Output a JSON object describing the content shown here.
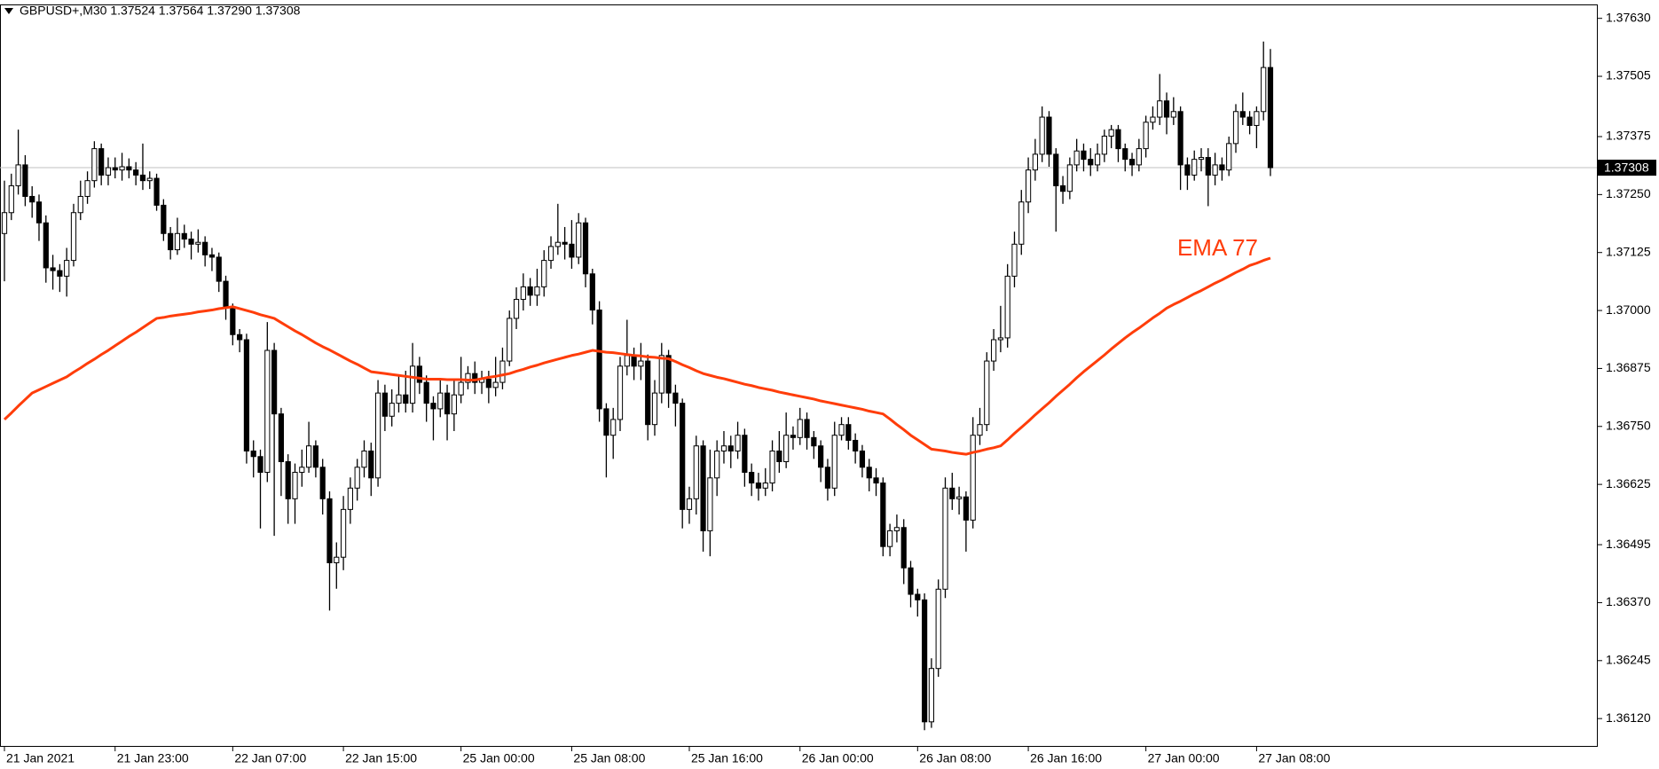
{
  "chart_data": {
    "type": "candlestick",
    "title": "GBPUSD+,M30 1.37524 1.37564 1.37290 1.37308",
    "categories": [
      "21 Jan 2021",
      null,
      null,
      null,
      null,
      null,
      null,
      null,
      null,
      null,
      null,
      null,
      null,
      null,
      null,
      null,
      "21 Jan 23:00",
      null,
      null,
      null,
      null,
      null,
      null,
      null,
      null,
      null,
      null,
      null,
      null,
      null,
      null,
      null,
      null,
      "22 Jan 07:00",
      null,
      null,
      null,
      null,
      null,
      null,
      null,
      null,
      null,
      null,
      null,
      null,
      null,
      null,
      null,
      "22 Jan 15:00",
      null,
      null,
      null,
      null,
      null,
      null,
      null,
      null,
      null,
      null,
      null,
      null,
      null,
      null,
      null,
      null,
      "25 Jan 00:00",
      null,
      null,
      null,
      null,
      null,
      null,
      null,
      null,
      null,
      null,
      null,
      null,
      null,
      null,
      null,
      "25 Jan 08:00",
      null,
      null,
      null,
      null,
      null,
      null,
      null,
      null,
      null,
      null,
      null,
      null,
      null,
      null,
      null,
      null,
      "25 Jan 16:00",
      null,
      null,
      null,
      null,
      null,
      null,
      null,
      null,
      null,
      null,
      null,
      null,
      null,
      null,
      null,
      "26 Jan 00:00",
      null,
      null,
      null,
      null,
      null,
      null,
      null,
      null,
      null,
      null,
      null,
      null,
      null,
      null,
      null,
      null,
      "26 Jan 08:00",
      null,
      null,
      null,
      null,
      null,
      null,
      null,
      null,
      null,
      null,
      null,
      null,
      null,
      null,
      null,
      "26 Jan 16:00",
      null,
      null,
      null,
      null,
      null,
      null,
      null,
      null,
      null,
      null,
      null,
      null,
      null,
      null,
      null,
      null,
      "27 Jan 00:00",
      null,
      null,
      null,
      null,
      null,
      null,
      null,
      null,
      null,
      null,
      null,
      null,
      null,
      null,
      null,
      "27 Jan 08:00",
      null,
      null
    ],
    "open": [
      1.37166,
      1.37211,
      1.37269,
      1.37314,
      1.37246,
      1.37234,
      1.37189,
      1.37092,
      1.37086,
      1.37074,
      1.37108,
      1.37211,
      1.37246,
      1.3728,
      1.37349,
      1.37292,
      1.37308,
      1.37303,
      1.3731,
      1.37303,
      1.37292,
      1.3728,
      1.37285,
      1.37227,
      1.37166,
      1.37131,
      1.37166,
      1.37154,
      1.37143,
      1.37147,
      1.3712,
      1.37115,
      1.37063,
      1.37005,
      1.36948,
      1.36937,
      1.36697,
      1.36685,
      1.36651,
      1.36914,
      1.36777,
      1.36674,
      1.36594,
      1.36651,
      1.36662,
      1.36708,
      1.36662,
      1.36594,
      1.36456,
      1.36468,
      1.36571,
      1.36617,
      1.36662,
      1.36697,
      1.36639,
      1.36822,
      1.36772,
      1.368,
      1.36818,
      1.368,
      1.3688,
      1.36845,
      1.368,
      1.36788,
      1.36822,
      1.36777,
      1.36818,
      1.36845,
      1.36864,
      1.36845,
      1.36852,
      1.36834,
      1.36845,
      1.36891,
      1.36983,
      1.37024,
      1.37051,
      1.37033,
      1.37051,
      1.37108,
      1.37138,
      1.37147,
      1.37143,
      1.37115,
      1.37189,
      1.37079,
      1.37001,
      1.36788,
      1.36731,
      1.36765,
      1.3688,
      1.36903,
      1.3688,
      1.36891,
      1.36754,
      1.36822,
      1.36903,
      1.36822,
      1.368,
      1.36571,
      1.36594,
      1.36708,
      1.36525,
      1.36639,
      1.36697,
      1.36708,
      1.36697,
      1.36731,
      1.36651,
      1.36628,
      1.36617,
      1.36628,
      1.36697,
      1.36674,
      1.36731,
      1.36726,
      1.36765,
      1.36726,
      1.36708,
      1.36662,
      1.36617,
      1.36731,
      1.36754,
      1.3672,
      1.36697,
      1.36662,
      1.36639,
      1.36628,
      1.36491,
      1.36525,
      1.36532,
      1.36445,
      1.36388,
      1.36376,
      1.36113,
      1.36228,
      1.36399,
      1.36617,
      1.36594,
      1.36598,
      1.36548,
      1.36731,
      1.36754,
      1.36891,
      1.36937,
      1.36941,
      1.37074,
      1.37143,
      1.37234,
      1.37303,
      1.37337,
      1.37417,
      1.37337,
      1.37269,
      1.37257,
      1.37314,
      1.37344,
      1.37326,
      1.37314,
      1.37337,
      1.37376,
      1.3739,
      1.37349,
      1.37326,
      1.37314,
      1.37349,
      1.37406,
      1.37417,
      1.37452,
      1.37417,
      1.37429,
      1.37314,
      1.37292,
      1.37326,
      1.3733,
      1.37292,
      1.37314,
      1.37303,
      1.3736,
      1.37429,
      1.37417,
      1.37399,
      1.37429,
      1.37524
    ],
    "high": [
      1.3728,
      1.37295,
      1.3739,
      1.37335,
      1.37268,
      1.3725,
      1.37205,
      1.3712,
      1.371,
      1.37135,
      1.3723,
      1.3728,
      1.373,
      1.37365,
      1.3736,
      1.3733,
      1.3733,
      1.3734,
      1.37328,
      1.3732,
      1.3736,
      1.373,
      1.37295,
      1.3724,
      1.3718,
      1.372,
      1.37185,
      1.3717,
      1.37175,
      1.3716,
      1.37135,
      1.37125,
      1.37075,
      1.37015,
      1.3696,
      1.3695,
      1.3672,
      1.367,
      1.36975,
      1.3693,
      1.3679,
      1.3669,
      1.3667,
      1.367,
      1.3676,
      1.3672,
      1.3668,
      1.3661,
      1.365,
      1.366,
      1.3664,
      1.3668,
      1.3672,
      1.36715,
      1.3685,
      1.3684,
      1.3683,
      1.3686,
      1.3687,
      1.3693,
      1.369,
      1.3686,
      1.36815,
      1.3685,
      1.3684,
      1.3685,
      1.369,
      1.3688,
      1.3689,
      1.3687,
      1.3687,
      1.369,
      1.3692,
      1.37,
      1.3705,
      1.3708,
      1.3707,
      1.3709,
      1.3713,
      1.3716,
      1.3723,
      1.3718,
      1.37195,
      1.3721,
      1.372,
      1.3709,
      1.3702,
      1.368,
      1.3679,
      1.369,
      1.3698,
      1.3692,
      1.3693,
      1.36905,
      1.3685,
      1.3693,
      1.36915,
      1.3684,
      1.3681,
      1.3662,
      1.3673,
      1.3672,
      1.367,
      1.3672,
      1.3674,
      1.3673,
      1.3676,
      1.36745,
      1.3667,
      1.3665,
      1.3666,
      1.3672,
      1.3674,
      1.3678,
      1.3675,
      1.3679,
      1.3678,
      1.3674,
      1.3672,
      1.3668,
      1.3676,
      1.3677,
      1.3677,
      1.36735,
      1.3671,
      1.3668,
      1.3666,
      1.3664,
      1.3654,
      1.3656,
      1.3655,
      1.3646,
      1.364,
      1.3639,
      1.3625,
      1.3642,
      1.3664,
      1.3665,
      1.3662,
      1.3661,
      1.3677,
      1.3679,
      1.3691,
      1.3696,
      1.3701,
      1.371,
      1.3717,
      1.3726,
      1.3733,
      1.3737,
      1.3744,
      1.3743,
      1.3735,
      1.3729,
      1.3733,
      1.3737,
      1.3736,
      1.3735,
      1.3736,
      1.3739,
      1.374,
      1.374,
      1.3736,
      1.3734,
      1.3737,
      1.3742,
      1.3744,
      1.3751,
      1.3747,
      1.3746,
      1.3744,
      1.3733,
      1.37345,
      1.3735,
      1.3735,
      1.3734,
      1.3733,
      1.37375,
      1.37445,
      1.3747,
      1.3743,
      1.3744,
      1.3758,
      1.37564
    ],
    "low": [
      1.37063,
      1.37195,
      1.3725,
      1.37225,
      1.372,
      1.3715,
      1.3706,
      1.37045,
      1.3704,
      1.3703,
      1.37095,
      1.37195,
      1.3723,
      1.37265,
      1.3727,
      1.3727,
      1.37285,
      1.3728,
      1.37285,
      1.3727,
      1.3726,
      1.37262,
      1.37215,
      1.3715,
      1.3711,
      1.3712,
      1.37135,
      1.3711,
      1.37125,
      1.37095,
      1.37085,
      1.3704,
      1.3698,
      1.36925,
      1.3691,
      1.3667,
      1.3664,
      1.3653,
      1.3663,
      1.36514,
      1.366,
      1.3654,
      1.3654,
      1.3662,
      1.3665,
      1.3664,
      1.3656,
      1.36353,
      1.364,
      1.3644,
      1.3654,
      1.3659,
      1.3664,
      1.366,
      1.3662,
      1.3674,
      1.3675,
      1.3678,
      1.3678,
      1.3678,
      1.3682,
      1.3676,
      1.3672,
      1.3677,
      1.3672,
      1.3674,
      1.368,
      1.3683,
      1.3682,
      1.3682,
      1.368,
      1.36815,
      1.3683,
      1.3688,
      1.3696,
      1.37,
      1.3701,
      1.3701,
      1.3703,
      1.3709,
      1.3712,
      1.3711,
      1.3709,
      1.371,
      1.3705,
      1.3697,
      1.3676,
      1.3664,
      1.3668,
      1.3674,
      1.3686,
      1.3685,
      1.3685,
      1.3672,
      1.3673,
      1.368,
      1.3679,
      1.3675,
      1.3653,
      1.3654,
      1.3656,
      1.3648,
      1.3647,
      1.366,
      1.3667,
      1.3666,
      1.3668,
      1.3662,
      1.366,
      1.3659,
      1.366,
      1.3661,
      1.3665,
      1.3666,
      1.367,
      1.3671,
      1.367,
      1.3668,
      1.3663,
      1.3659,
      1.366,
      1.3672,
      1.367,
      1.3667,
      1.3664,
      1.3661,
      1.366,
      1.3647,
      1.3647,
      1.365,
      1.3641,
      1.3636,
      1.3634,
      1.36095,
      1.361,
      1.3621,
      1.3638,
      1.3657,
      1.3656,
      1.3648,
      1.3653,
      1.3671,
      1.3674,
      1.3687,
      1.3691,
      1.3692,
      1.3705,
      1.3712,
      1.3721,
      1.3728,
      1.3732,
      1.3731,
      1.3717,
      1.3723,
      1.3724,
      1.373,
      1.373,
      1.3729,
      1.373,
      1.3732,
      1.3735,
      1.3732,
      1.373,
      1.3729,
      1.373,
      1.3733,
      1.3739,
      1.374,
      1.3738,
      1.374,
      1.3726,
      1.3726,
      1.3728,
      1.373,
      1.37225,
      1.3727,
      1.3728,
      1.3729,
      1.3734,
      1.374,
      1.3738,
      1.3735,
      1.3741,
      1.3729
    ],
    "close": [
      1.37211,
      1.37269,
      1.37314,
      1.37246,
      1.37234,
      1.37189,
      1.37092,
      1.37086,
      1.37074,
      1.37108,
      1.37211,
      1.37246,
      1.3728,
      1.37349,
      1.37292,
      1.37308,
      1.37303,
      1.3731,
      1.37303,
      1.37292,
      1.3728,
      1.37285,
      1.37227,
      1.37166,
      1.37131,
      1.37166,
      1.37154,
      1.37143,
      1.37147,
      1.3712,
      1.37115,
      1.37063,
      1.37005,
      1.36948,
      1.36937,
      1.36697,
      1.36685,
      1.36651,
      1.36914,
      1.36777,
      1.36674,
      1.36594,
      1.36651,
      1.36662,
      1.36708,
      1.36662,
      1.36594,
      1.36456,
      1.36468,
      1.36571,
      1.36617,
      1.36662,
      1.36697,
      1.36639,
      1.36822,
      1.36772,
      1.368,
      1.36818,
      1.368,
      1.3688,
      1.36845,
      1.368,
      1.36788,
      1.36822,
      1.36777,
      1.36818,
      1.36845,
      1.36864,
      1.36845,
      1.36852,
      1.36834,
      1.36845,
      1.36891,
      1.36983,
      1.37024,
      1.37051,
      1.37033,
      1.37051,
      1.37108,
      1.37138,
      1.37147,
      1.37143,
      1.37115,
      1.37189,
      1.37079,
      1.37001,
      1.36788,
      1.36731,
      1.36765,
      1.3688,
      1.36903,
      1.3688,
      1.36891,
      1.36754,
      1.36822,
      1.36903,
      1.36822,
      1.368,
      1.36571,
      1.36594,
      1.36708,
      1.36525,
      1.36639,
      1.36697,
      1.36708,
      1.36697,
      1.36731,
      1.36651,
      1.36628,
      1.36617,
      1.36628,
      1.36697,
      1.36674,
      1.36731,
      1.36726,
      1.36765,
      1.36726,
      1.36708,
      1.36662,
      1.36617,
      1.36731,
      1.36754,
      1.3672,
      1.36697,
      1.36662,
      1.36639,
      1.36628,
      1.36491,
      1.36525,
      1.36532,
      1.36445,
      1.36388,
      1.36376,
      1.36113,
      1.36228,
      1.36399,
      1.36617,
      1.36594,
      1.36598,
      1.36548,
      1.36731,
      1.36754,
      1.36891,
      1.36937,
      1.36941,
      1.37074,
      1.37143,
      1.37234,
      1.37303,
      1.37337,
      1.37417,
      1.37337,
      1.37269,
      1.37257,
      1.37314,
      1.37344,
      1.37326,
      1.37314,
      1.37337,
      1.37376,
      1.3739,
      1.37349,
      1.37326,
      1.37314,
      1.37349,
      1.37406,
      1.37417,
      1.37452,
      1.37417,
      1.37429,
      1.37314,
      1.37292,
      1.37326,
      1.3733,
      1.37292,
      1.37314,
      1.37303,
      1.3736,
      1.37429,
      1.37417,
      1.37399,
      1.37429,
      1.37524,
      1.37308
    ],
    "up_color": "#ffffff",
    "down_color": "#000000",
    "ema": {
      "name": "EMA 77",
      "color": "#ff3d0a",
      "values": [
        1.36765,
        1.36779,
        1.36794,
        1.36808,
        1.36822,
        1.36829,
        1.36836,
        1.36843,
        1.3685,
        1.36857,
        1.36867,
        1.36876,
        1.36886,
        1.36895,
        1.36905,
        1.36914,
        1.36924,
        1.36934,
        1.36944,
        1.36953,
        1.36963,
        1.36973,
        1.36983,
        1.36985,
        1.36988,
        1.3699,
        1.36992,
        1.36994,
        1.36997,
        1.36999,
        1.37001,
        1.37004,
        1.37006,
        1.37008,
        1.37004,
        1.37,
        1.36996,
        1.36991,
        1.36987,
        1.36983,
        1.36974,
        1.36965,
        1.36956,
        1.36948,
        1.36939,
        1.3693,
        1.36922,
        1.36915,
        1.36907,
        1.36899,
        1.36891,
        1.36884,
        1.36876,
        1.36868,
        1.36866,
        1.36864,
        1.36862,
        1.3686,
        1.36858,
        1.36856,
        1.36854,
        1.36852,
        1.36852,
        1.36852,
        1.36851,
        1.36851,
        1.36851,
        1.3685,
        1.3685,
        1.36853,
        1.36856,
        1.36858,
        1.36861,
        1.36864,
        1.36869,
        1.36873,
        1.36878,
        1.36882,
        1.36887,
        1.36891,
        1.36895,
        1.36899,
        1.36903,
        1.36906,
        1.3691,
        1.36914,
        1.36912,
        1.3691,
        1.36909,
        1.36907,
        1.36905,
        1.36903,
        1.36902,
        1.369,
        1.36899,
        1.36897,
        1.36896,
        1.3689,
        1.36883,
        1.36877,
        1.3687,
        1.36864,
        1.3686,
        1.36856,
        1.36853,
        1.36849,
        1.36845,
        1.36841,
        1.36838,
        1.36834,
        1.36831,
        1.36828,
        1.36824,
        1.36821,
        1.36818,
        1.36815,
        1.36812,
        1.36809,
        1.36805,
        1.36802,
        1.36799,
        1.36796,
        1.36793,
        1.3679,
        1.36787,
        1.36783,
        1.3678,
        1.36777,
        1.36766,
        1.36754,
        1.36743,
        1.36731,
        1.36721,
        1.36711,
        1.36701,
        1.36699,
        1.36697,
        1.36694,
        1.36692,
        1.3669,
        1.36694,
        1.36697,
        1.36701,
        1.36704,
        1.36708,
        1.36721,
        1.36735,
        1.36748,
        1.36761,
        1.36775,
        1.36788,
        1.36801,
        1.36815,
        1.36828,
        1.36841,
        1.36855,
        1.36868,
        1.3688,
        1.36892,
        1.36904,
        1.36917,
        1.36929,
        1.36941,
        1.36952,
        1.36962,
        1.36973,
        1.36984,
        1.36994,
        1.37005,
        1.37013,
        1.3702,
        1.37028,
        1.37036,
        1.37043,
        1.37051,
        1.37059,
        1.37066,
        1.37074,
        1.37082,
        1.37089,
        1.37097,
        1.37102,
        1.37108,
        1.37113
      ]
    },
    "last_price": 1.37308,
    "ylim": [
      1.36061,
      1.3766
    ],
    "yticks": [
      {
        "value": 1.3763,
        "label": "1.37630"
      },
      1.37505,
      1.37375,
      {
        "value": 1.3725,
        "label": "1.37250"
      },
      1.37125,
      {
        "value": 1.37,
        "label": "1.37000"
      },
      1.36875,
      {
        "value": 1.3675,
        "label": "1.36750"
      },
      1.36625,
      1.36495,
      {
        "value": 1.3637,
        "label": "1.36370"
      },
      1.36245,
      {
        "value": 1.3612,
        "label": "1.36120"
      }
    ],
    "grid": false
  }
}
